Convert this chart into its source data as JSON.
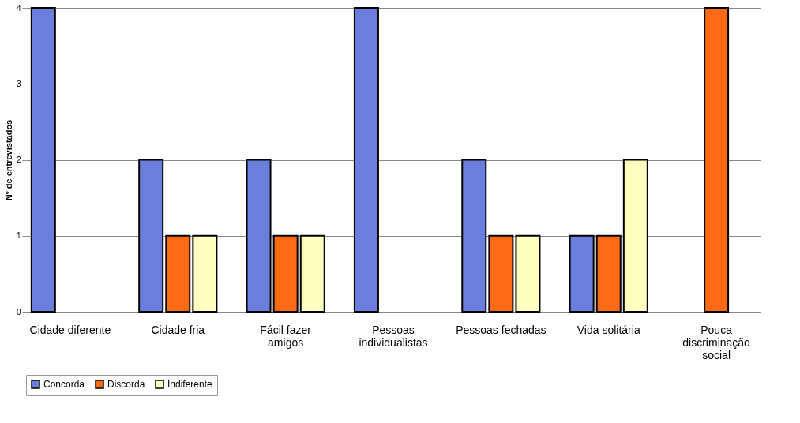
{
  "chart_data": {
    "type": "bar",
    "ylabel": "Nº de entrevistados",
    "categories": [
      "Cidade diferente",
      "Cidade fria",
      "Fácil fazer amigos",
      "Pessoas individualistas",
      "Pessoas fechadas",
      "Vida solitária",
      "Pouca discriminação social"
    ],
    "series": [
      {
        "name": "Concorda",
        "color": "#6a7fdb",
        "values": [
          4,
          2,
          2,
          4,
          2,
          1,
          0
        ]
      },
      {
        "name": "Discorda",
        "color": "#ff6a13",
        "values": [
          0,
          1,
          1,
          0,
          1,
          1,
          4
        ]
      },
      {
        "name": "Indiferente",
        "color": "#ffffc0",
        "values": [
          0,
          1,
          1,
          0,
          1,
          2,
          0
        ]
      }
    ],
    "ylim": [
      0,
      4
    ],
    "yticks": [
      0,
      1,
      2,
      3,
      4
    ],
    "grid": "y",
    "legend": "bottom"
  }
}
